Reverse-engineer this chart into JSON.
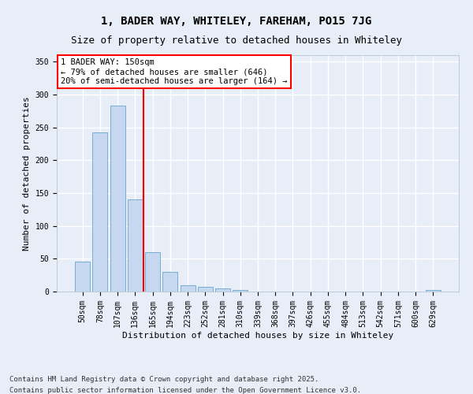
{
  "title_line1": "1, BADER WAY, WHITELEY, FAREHAM, PO15 7JG",
  "title_line2": "Size of property relative to detached houses in Whiteley",
  "xlabel": "Distribution of detached houses by size in Whiteley",
  "ylabel": "Number of detached properties",
  "categories": [
    "50sqm",
    "78sqm",
    "107sqm",
    "136sqm",
    "165sqm",
    "194sqm",
    "223sqm",
    "252sqm",
    "281sqm",
    "310sqm",
    "339sqm",
    "368sqm",
    "397sqm",
    "426sqm",
    "455sqm",
    "484sqm",
    "513sqm",
    "542sqm",
    "571sqm",
    "600sqm",
    "629sqm"
  ],
  "values": [
    46,
    242,
    283,
    140,
    60,
    30,
    10,
    7,
    5,
    3,
    0,
    0,
    0,
    0,
    0,
    0,
    0,
    0,
    0,
    0,
    3
  ],
  "bar_color": "#c5d8f0",
  "bar_edgecolor": "#7aadd4",
  "vline_x": 3.5,
  "vline_color": "red",
  "annotation_text": "1 BADER WAY: 150sqm\n← 79% of detached houses are smaller (646)\n20% of semi-detached houses are larger (164) →",
  "annotation_box_color": "white",
  "annotation_box_edgecolor": "red",
  "ylim": [
    0,
    360
  ],
  "yticks": [
    0,
    50,
    100,
    150,
    200,
    250,
    300,
    350
  ],
  "footnote_line1": "Contains HM Land Registry data © Crown copyright and database right 2025.",
  "footnote_line2": "Contains public sector information licensed under the Open Government Licence v3.0.",
  "background_color": "#e8eef8",
  "grid_color": "white",
  "title_fontsize": 10,
  "subtitle_fontsize": 9,
  "axis_label_fontsize": 8,
  "tick_fontsize": 7,
  "annotation_fontsize": 7.5,
  "footnote_fontsize": 6.5
}
